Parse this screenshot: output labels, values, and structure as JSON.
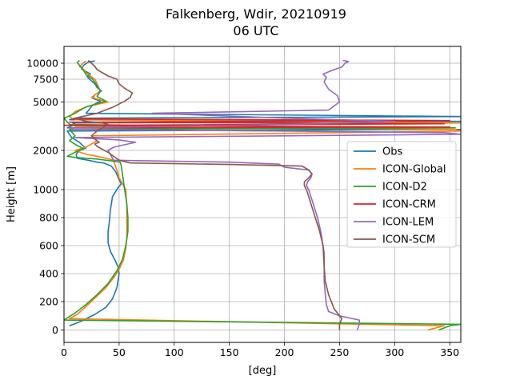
{
  "chart_data": {
    "type": "line",
    "title": "Falkenberg, Wdir, 20210919",
    "subtitle": "06 UTC",
    "xlabel": "[deg]",
    "ylabel": "Height [m]",
    "xlim": [
      0,
      360
    ],
    "x_ticks": [
      0,
      50,
      100,
      150,
      200,
      250,
      300,
      350
    ],
    "y_ticks": [
      0,
      200,
      400,
      600,
      800,
      1000,
      2000,
      5000,
      7500,
      10000
    ],
    "grid": true,
    "legend_position": "right",
    "series": [
      {
        "name": "Obs",
        "color": "#1f77b4",
        "points": [
          [
            5,
            30
          ],
          [
            15,
            60
          ],
          [
            28,
            110
          ],
          [
            38,
            160
          ],
          [
            44,
            220
          ],
          [
            48,
            300
          ],
          [
            50,
            400
          ],
          [
            49,
            450
          ],
          [
            46,
            500
          ],
          [
            42,
            560
          ],
          [
            40,
            620
          ],
          [
            40,
            700
          ],
          [
            41,
            760
          ],
          [
            42,
            850
          ],
          [
            44,
            950
          ],
          [
            49,
            1050
          ],
          [
            52,
            1150
          ],
          [
            50,
            1250
          ],
          [
            47,
            1450
          ],
          [
            43,
            1600
          ],
          [
            36,
            1680
          ],
          [
            30,
            1700
          ],
          [
            22,
            1750
          ],
          [
            12,
            1800
          ],
          [
            11,
            1900
          ],
          [
            14,
            2000
          ],
          [
            20,
            2150
          ],
          [
            17,
            2300
          ],
          [
            14,
            2500
          ],
          [
            7,
            2800
          ],
          [
            3,
            3200
          ],
          [
            360,
            3300
          ],
          [
            3,
            3400
          ],
          [
            10,
            3600
          ],
          [
            8,
            3700
          ],
          [
            360,
            3800
          ],
          [
            5,
            3900
          ],
          [
            10,
            4000
          ],
          [
            360,
            4100
          ],
          [
            20,
            4300
          ],
          [
            26,
            4800
          ],
          [
            33,
            5100
          ],
          [
            26,
            5400
          ],
          [
            28,
            5800
          ],
          [
            34,
            6200
          ],
          [
            30,
            6600
          ],
          [
            28,
            7000
          ],
          [
            24,
            7400
          ],
          [
            21,
            7900
          ],
          [
            24,
            8300
          ],
          [
            20,
            8700
          ],
          [
            16,
            9100
          ],
          [
            18,
            9700
          ],
          [
            22,
            10200
          ],
          [
            28,
            10400
          ]
        ]
      },
      {
        "name": "ICON-Global",
        "color": "#ff7f0e",
        "points": [
          [
            330,
            0
          ],
          [
            345,
            30
          ],
          [
            5,
            80
          ],
          [
            12,
            110
          ],
          [
            22,
            180
          ],
          [
            30,
            240
          ],
          [
            38,
            300
          ],
          [
            45,
            370
          ],
          [
            50,
            430
          ],
          [
            54,
            500
          ],
          [
            56,
            580
          ],
          [
            57,
            650
          ],
          [
            57,
            760
          ],
          [
            57,
            880
          ],
          [
            56,
            1000
          ],
          [
            54,
            1100
          ],
          [
            50,
            1300
          ],
          [
            48,
            1500
          ],
          [
            46,
            1650
          ],
          [
            45,
            1750
          ],
          [
            38,
            1800
          ],
          [
            30,
            1850
          ],
          [
            20,
            1900
          ],
          [
            10,
            2000
          ],
          [
            20,
            2200
          ],
          [
            25,
            2400
          ],
          [
            30,
            2600
          ],
          [
            25,
            2900
          ],
          [
            360,
            3200
          ],
          [
            355,
            3300
          ],
          [
            10,
            3500
          ],
          [
            360,
            3700
          ],
          [
            10,
            3900
          ],
          [
            5,
            4100
          ],
          [
            10,
            4400
          ],
          [
            20,
            4700
          ],
          [
            40,
            5000
          ],
          [
            25,
            5500
          ],
          [
            33,
            6200
          ],
          [
            30,
            7000
          ],
          [
            28,
            7500
          ],
          [
            24,
            8000
          ],
          [
            20,
            8500
          ],
          [
            18,
            9000
          ],
          [
            14,
            9500
          ],
          [
            18,
            10100
          ],
          [
            20,
            10400
          ]
        ]
      },
      {
        "name": "ICON-D2",
        "color": "#2ca02c",
        "points": [
          [
            340,
            0
          ],
          [
            350,
            30
          ],
          [
            360,
            40
          ],
          [
            0,
            70
          ],
          [
            10,
            120
          ],
          [
            20,
            180
          ],
          [
            30,
            250
          ],
          [
            40,
            330
          ],
          [
            48,
            420
          ],
          [
            53,
            500
          ],
          [
            56,
            600
          ],
          [
            58,
            700
          ],
          [
            58,
            800
          ],
          [
            57,
            900
          ],
          [
            55,
            1000
          ],
          [
            54,
            1200
          ],
          [
            53,
            1400
          ],
          [
            52,
            1600
          ],
          [
            51,
            1700
          ],
          [
            30,
            1780
          ],
          [
            10,
            1820
          ],
          [
            3,
            1850
          ],
          [
            10,
            1950
          ],
          [
            18,
            2100
          ],
          [
            12,
            2300
          ],
          [
            5,
            2600
          ],
          [
            10,
            2900
          ],
          [
            5,
            3300
          ],
          [
            355,
            3400
          ],
          [
            5,
            3600
          ],
          [
            0,
            4000
          ],
          [
            10,
            4300
          ],
          [
            20,
            4700
          ],
          [
            38,
            5100
          ],
          [
            30,
            5600
          ],
          [
            33,
            6200
          ],
          [
            30,
            6800
          ],
          [
            26,
            7500
          ],
          [
            20,
            8200
          ],
          [
            18,
            8800
          ],
          [
            15,
            9500
          ],
          [
            12,
            10100
          ],
          [
            14,
            10500
          ]
        ]
      },
      {
        "name": "ICON-CRM",
        "color": "#d62728",
        "points": [
          [
            5,
            3400
          ],
          [
            350,
            3450
          ],
          [
            0,
            3550
          ],
          [
            345,
            3650
          ],
          [
            5,
            3750
          ],
          [
            350,
            3850
          ],
          [
            8,
            3950
          ]
        ]
      },
      {
        "name": "ICON-LEM",
        "color": "#9467bd",
        "points": [
          [
            266,
            0
          ],
          [
            268,
            40
          ],
          [
            268,
            70
          ],
          [
            250,
            100
          ],
          [
            240,
            130
          ],
          [
            238,
            180
          ],
          [
            237,
            260
          ],
          [
            236,
            350
          ],
          [
            236,
            450
          ],
          [
            236,
            550
          ],
          [
            235,
            600
          ],
          [
            233,
            700
          ],
          [
            230,
            800
          ],
          [
            226,
            900
          ],
          [
            222,
            1000
          ],
          [
            220,
            1100
          ],
          [
            221,
            1200
          ],
          [
            224,
            1300
          ],
          [
            225,
            1400
          ],
          [
            222,
            1500
          ],
          [
            200,
            1570
          ],
          [
            195,
            1650
          ],
          [
            150,
            1700
          ],
          [
            45,
            1750
          ],
          [
            40,
            2000
          ],
          [
            45,
            2200
          ],
          [
            55,
            2350
          ],
          [
            65,
            2500
          ],
          [
            50,
            2650
          ],
          [
            10,
            2800
          ],
          [
            200,
            2900
          ],
          [
            360,
            3000
          ],
          [
            345,
            3100
          ],
          [
            200,
            3200
          ],
          [
            10,
            3300
          ],
          [
            5,
            3400
          ],
          [
            200,
            3600
          ],
          [
            300,
            3800
          ],
          [
            200,
            4000
          ],
          [
            80,
            4300
          ],
          [
            240,
            4500
          ],
          [
            250,
            5000
          ],
          [
            248,
            5700
          ],
          [
            240,
            6400
          ],
          [
            236,
            7200
          ],
          [
            238,
            7800
          ],
          [
            235,
            8300
          ],
          [
            245,
            9000
          ],
          [
            252,
            9400
          ],
          [
            255,
            10000
          ],
          [
            258,
            10300
          ],
          [
            253,
            10500
          ]
        ]
      },
      {
        "name": "ICON-SCM",
        "color": "#8c564b",
        "points": [
          [
            250,
            0
          ],
          [
            250,
            40
          ],
          [
            252,
            80
          ],
          [
            245,
            150
          ],
          [
            240,
            250
          ],
          [
            237,
            350
          ],
          [
            236,
            450
          ],
          [
            235,
            600
          ],
          [
            232,
            700
          ],
          [
            228,
            800
          ],
          [
            224,
            900
          ],
          [
            220,
            1000
          ],
          [
            218,
            1100
          ],
          [
            218,
            1200
          ],
          [
            222,
            1300
          ],
          [
            225,
            1400
          ],
          [
            222,
            1500
          ],
          [
            216,
            1600
          ],
          [
            150,
            1640
          ],
          [
            60,
            1680
          ],
          [
            50,
            1750
          ],
          [
            40,
            1950
          ],
          [
            34,
            2100
          ],
          [
            30,
            2250
          ],
          [
            28,
            2400
          ],
          [
            32,
            2500
          ],
          [
            28,
            2700
          ],
          [
            25,
            2900
          ],
          [
            30,
            3200
          ],
          [
            35,
            3400
          ],
          [
            40,
            3600
          ],
          [
            35,
            3700
          ],
          [
            20,
            3800
          ],
          [
            10,
            4000
          ],
          [
            30,
            4300
          ],
          [
            45,
            4700
          ],
          [
            55,
            5100
          ],
          [
            60,
            5500
          ],
          [
            62,
            6000
          ],
          [
            55,
            6500
          ],
          [
            50,
            7000
          ],
          [
            48,
            7500
          ],
          [
            40,
            8000
          ],
          [
            35,
            8500
          ],
          [
            30,
            9000
          ],
          [
            28,
            9500
          ],
          [
            25,
            10000
          ],
          [
            22,
            10500
          ]
        ]
      }
    ]
  }
}
